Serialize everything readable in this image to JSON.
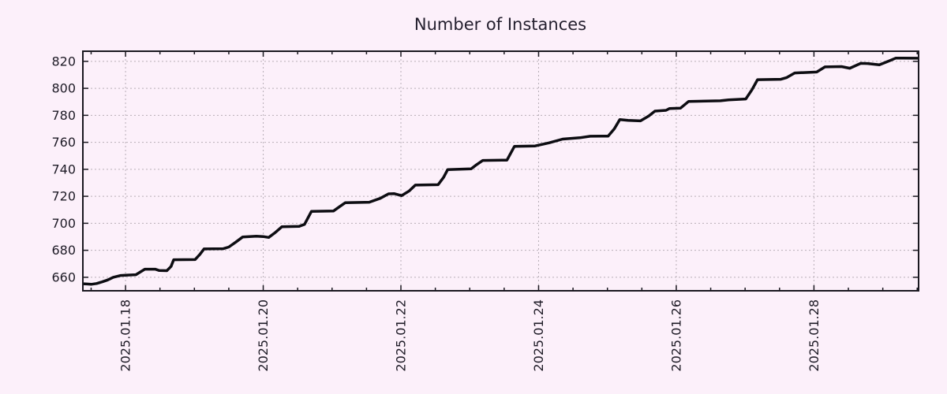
{
  "title": "Number of Instances",
  "colors": {
    "background": "#fcf0fa",
    "line": "#0d0d12",
    "grid": "#b7aeb7",
    "border": "#1a1820",
    "text": "#1e1b26"
  },
  "chart_data": {
    "type": "line",
    "title": "Number of Instances",
    "xlabel": "",
    "ylabel": "",
    "x_unit": "day of January 2025 (fractional)",
    "xlim": [
      17.38,
      29.52
    ],
    "ylim": [
      650,
      827.5
    ],
    "grid": true,
    "legend_position": "none",
    "x_major_ticks": [
      {
        "value": 18,
        "label": "2025.01.18"
      },
      {
        "value": 20,
        "label": "2025.01.20"
      },
      {
        "value": 22,
        "label": "2025.01.22"
      },
      {
        "value": 24,
        "label": "2025.01.24"
      },
      {
        "value": 26,
        "label": "2025.01.26"
      },
      {
        "value": 28,
        "label": "2025.01.28"
      }
    ],
    "x_minor_tick_interval": 0.5,
    "y_ticks": [
      660,
      680,
      700,
      720,
      740,
      760,
      780,
      800,
      820
    ],
    "series": [
      {
        "name": "instances",
        "points": [
          [
            17.38,
            655.2
          ],
          [
            17.44,
            655.0
          ],
          [
            17.5,
            654.8
          ],
          [
            17.58,
            655.4
          ],
          [
            17.66,
            656.6
          ],
          [
            17.74,
            658.0
          ],
          [
            17.82,
            660.0
          ],
          [
            17.93,
            661.3
          ],
          [
            18.0,
            661.5
          ],
          [
            18.15,
            661.9
          ],
          [
            18.28,
            666.0
          ],
          [
            18.43,
            666.0
          ],
          [
            18.49,
            665.0
          ],
          [
            18.6,
            664.9
          ],
          [
            18.66,
            668.0
          ],
          [
            18.7,
            673.0
          ],
          [
            19.01,
            673.1
          ],
          [
            19.08,
            677.0
          ],
          [
            19.14,
            681.0
          ],
          [
            19.42,
            681.2
          ],
          [
            19.5,
            682.4
          ],
          [
            19.6,
            686.0
          ],
          [
            19.7,
            689.8
          ],
          [
            19.9,
            690.4
          ],
          [
            20.0,
            690.2
          ],
          [
            20.08,
            689.5
          ],
          [
            20.17,
            693.0
          ],
          [
            20.27,
            697.4
          ],
          [
            20.52,
            697.7
          ],
          [
            20.6,
            699.2
          ],
          [
            20.7,
            708.8
          ],
          [
            21.02,
            709.1
          ],
          [
            21.1,
            712.0
          ],
          [
            21.19,
            715.2
          ],
          [
            21.54,
            715.6
          ],
          [
            21.7,
            718.5
          ],
          [
            21.82,
            721.8
          ],
          [
            21.9,
            722.0
          ],
          [
            22.01,
            720.5
          ],
          [
            22.12,
            724.0
          ],
          [
            22.21,
            728.3
          ],
          [
            22.54,
            728.6
          ],
          [
            22.62,
            734.0
          ],
          [
            22.68,
            739.8
          ],
          [
            23.02,
            740.3
          ],
          [
            23.1,
            743.5
          ],
          [
            23.19,
            746.6
          ],
          [
            23.54,
            746.8
          ],
          [
            23.65,
            757.0
          ],
          [
            23.95,
            757.3
          ],
          [
            24.15,
            759.6
          ],
          [
            24.35,
            762.4
          ],
          [
            24.6,
            763.4
          ],
          [
            24.75,
            764.5
          ],
          [
            25.01,
            764.6
          ],
          [
            25.1,
            770.0
          ],
          [
            25.18,
            776.9
          ],
          [
            25.3,
            776.3
          ],
          [
            25.48,
            775.9
          ],
          [
            25.6,
            779.5
          ],
          [
            25.69,
            783.1
          ],
          [
            25.85,
            783.7
          ],
          [
            25.9,
            785.0
          ],
          [
            26.06,
            785.3
          ],
          [
            26.18,
            790.3
          ],
          [
            26.64,
            790.8
          ],
          [
            26.76,
            791.5
          ],
          [
            27.01,
            792.1
          ],
          [
            27.1,
            799.0
          ],
          [
            27.18,
            806.4
          ],
          [
            27.52,
            806.7
          ],
          [
            27.6,
            807.9
          ],
          [
            27.72,
            811.4
          ],
          [
            28.04,
            812.1
          ],
          [
            28.16,
            815.9
          ],
          [
            28.4,
            816.1
          ],
          [
            28.52,
            814.9
          ],
          [
            28.68,
            818.5
          ],
          [
            28.78,
            818.4
          ],
          [
            28.95,
            817.4
          ],
          [
            29.1,
            820.5
          ],
          [
            29.19,
            822.4
          ],
          [
            29.52,
            822.3
          ]
        ]
      }
    ]
  }
}
